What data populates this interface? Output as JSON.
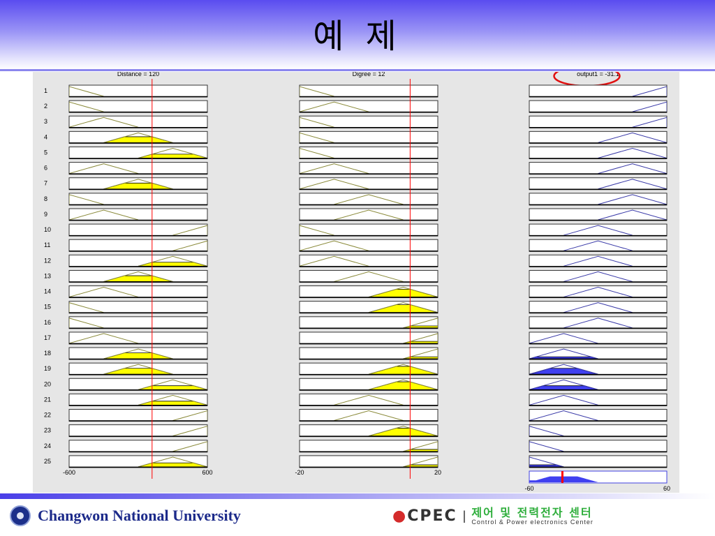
{
  "title": "예 제",
  "viewer": {
    "inputs": [
      {
        "label": "Distance = 120",
        "value": 120,
        "range": [
          -600,
          600
        ],
        "range_labels": [
          "-600",
          "600"
        ],
        "mf_centers": [
          -600,
          -300,
          0,
          300,
          600
        ]
      },
      {
        "label": "Digree = 12",
        "value": 12,
        "range": [
          -20,
          20
        ],
        "range_labels": [
          "-20",
          "20"
        ],
        "mf_centers": [
          -20,
          -10,
          0,
          10,
          20
        ]
      }
    ],
    "output": {
      "label": "output1 = -31.1",
      "value": -31.1,
      "range": [
        -60,
        60
      ],
      "range_labels": [
        "-60",
        "60"
      ],
      "mf_centers": [
        -60,
        -30,
        0,
        30,
        60
      ],
      "highlighted": true
    },
    "rules": [
      {
        "n": "1",
        "mf": [
          0,
          0,
          4
        ]
      },
      {
        "n": "2",
        "mf": [
          0,
          1,
          4
        ]
      },
      {
        "n": "3",
        "mf": [
          1,
          0,
          4
        ]
      },
      {
        "n": "4",
        "mf": [
          2,
          0,
          3
        ]
      },
      {
        "n": "5",
        "mf": [
          3,
          0,
          3
        ]
      },
      {
        "n": "6",
        "mf": [
          1,
          1,
          3
        ]
      },
      {
        "n": "7",
        "mf": [
          2,
          1,
          3
        ]
      },
      {
        "n": "8",
        "mf": [
          0,
          2,
          3
        ]
      },
      {
        "n": "9",
        "mf": [
          1,
          2,
          3
        ]
      },
      {
        "n": "10",
        "mf": [
          4,
          0,
          2
        ]
      },
      {
        "n": "11",
        "mf": [
          4,
          1,
          2
        ]
      },
      {
        "n": "12",
        "mf": [
          3,
          1,
          2
        ]
      },
      {
        "n": "13",
        "mf": [
          2,
          2,
          2
        ]
      },
      {
        "n": "14",
        "mf": [
          1,
          3,
          2
        ]
      },
      {
        "n": "15",
        "mf": [
          0,
          3,
          2
        ]
      },
      {
        "n": "16",
        "mf": [
          0,
          4,
          2
        ]
      },
      {
        "n": "17",
        "mf": [
          1,
          4,
          1
        ]
      },
      {
        "n": "18",
        "mf": [
          2,
          4,
          1
        ]
      },
      {
        "n": "19",
        "mf": [
          2,
          3,
          1
        ]
      },
      {
        "n": "20",
        "mf": [
          3,
          3,
          1
        ]
      },
      {
        "n": "21",
        "mf": [
          3,
          2,
          1
        ]
      },
      {
        "n": "22",
        "mf": [
          4,
          2,
          1
        ]
      },
      {
        "n": "23",
        "mf": [
          4,
          3,
          0
        ]
      },
      {
        "n": "24",
        "mf": [
          4,
          4,
          0
        ]
      },
      {
        "n": "25",
        "mf": [
          3,
          4,
          0
        ]
      }
    ],
    "colors": {
      "input_mf": "#8a8a3a",
      "input_fill": "#ffff00",
      "output_mf": "#3a3aa8",
      "output_fill": "#4040f0",
      "crisp_line": "#ff0000",
      "highlight": "#e01010"
    }
  },
  "footer": {
    "university": "Changwon National University",
    "center_logo": "CPEC",
    "center_name_kr": "제어 및 전력전자 센터",
    "center_name_en": "Control & Power electronics Center"
  }
}
